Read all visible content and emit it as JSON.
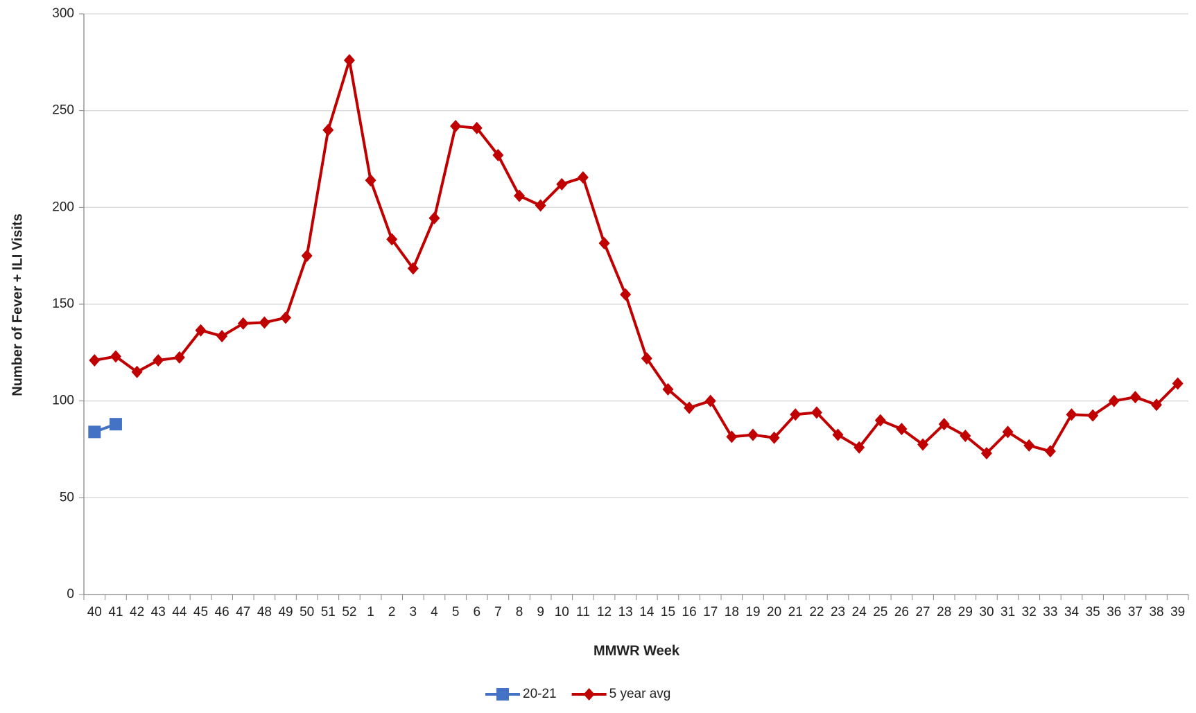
{
  "chart_data": {
    "type": "line",
    "x_label": "MMWR Week",
    "y_label": "Number of Fever + ILI Visits",
    "categories": [
      "40",
      "41",
      "42",
      "43",
      "44",
      "45",
      "46",
      "47",
      "48",
      "49",
      "50",
      "51",
      "52",
      "1",
      "2",
      "3",
      "4",
      "5",
      "6",
      "7",
      "8",
      "9",
      "10",
      "11",
      "12",
      "13",
      "14",
      "15",
      "16",
      "17",
      "18",
      "19",
      "20",
      "21",
      "22",
      "23",
      "24",
      "25",
      "26",
      "27",
      "28",
      "29",
      "30",
      "31",
      "32",
      "33",
      "34",
      "35",
      "36",
      "37",
      "38",
      "39"
    ],
    "series": [
      {
        "name": "20-21",
        "color": "#4472c4",
        "marker": "square",
        "values": [
          84,
          88,
          null,
          null,
          null,
          null,
          null,
          null,
          null,
          null,
          null,
          null,
          null,
          null,
          null,
          null,
          null,
          null,
          null,
          null,
          null,
          null,
          null,
          null,
          null,
          null,
          null,
          null,
          null,
          null,
          null,
          null,
          null,
          null,
          null,
          null,
          null,
          null,
          null,
          null,
          null,
          null,
          null,
          null,
          null,
          null,
          null,
          null,
          null,
          null,
          null,
          null
        ]
      },
      {
        "name": "5 year avg",
        "color": "#c00000",
        "marker": "diamond",
        "values": [
          121,
          123,
          115,
          121,
          122.5,
          136.5,
          133.5,
          140,
          140.5,
          143,
          175,
          240,
          276,
          214,
          183.5,
          168.5,
          194.5,
          242,
          241,
          227,
          206,
          201,
          212,
          215.5,
          181.5,
          155,
          122,
          106,
          96.5,
          100,
          81.5,
          82.5,
          81,
          93,
          94,
          82.5,
          76,
          90,
          85.5,
          77.5,
          88,
          82,
          73,
          84,
          77,
          74,
          93,
          92.5,
          100,
          102,
          98,
          109
        ]
      }
    ],
    "ylim": [
      0,
      300
    ],
    "yticks": [
      0,
      50,
      100,
      150,
      200,
      250,
      300
    ],
    "grid": true,
    "legend": "bottom"
  }
}
